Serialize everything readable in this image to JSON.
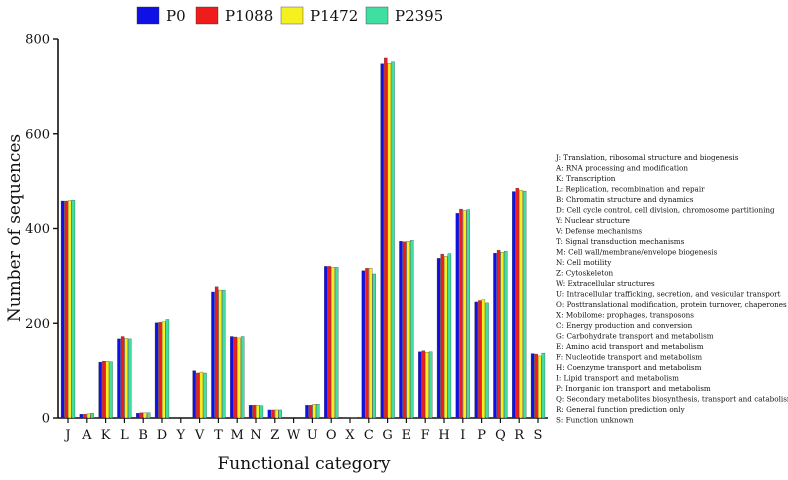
{
  "chart_data": {
    "type": "bar",
    "xlabel": "Functional category",
    "ylabel": "Number of sequences",
    "ylim": [
      0,
      800
    ],
    "yticks": [
      0,
      200,
      400,
      600,
      800
    ],
    "legend_position": "top",
    "grid": false,
    "categories": [
      "J",
      "A",
      "K",
      "L",
      "B",
      "D",
      "Y",
      "V",
      "T",
      "M",
      "N",
      "Z",
      "W",
      "U",
      "O",
      "X",
      "C",
      "G",
      "E",
      "F",
      "H",
      "I",
      "P",
      "Q",
      "R",
      "S"
    ],
    "series": [
      {
        "name": "P0",
        "color": "#1010e6",
        "values": [
          458,
          8,
          118,
          167,
          10,
          201,
          0,
          100,
          266,
          172,
          27,
          17,
          0,
          27,
          320,
          1,
          311,
          748,
          373,
          140,
          337,
          432,
          245,
          348,
          478,
          136
        ]
      },
      {
        "name": "P1088",
        "color": "#ee1c1c",
        "values": [
          458,
          8,
          120,
          172,
          11,
          202,
          0,
          95,
          277,
          171,
          27,
          17,
          0,
          27,
          320,
          1,
          316,
          760,
          372,
          142,
          346,
          441,
          248,
          354,
          485,
          135
        ]
      },
      {
        "name": "P1472",
        "color": "#f5f01e",
        "values": [
          459,
          9,
          120,
          168,
          11,
          203,
          0,
          97,
          270,
          169,
          27,
          17,
          0,
          29,
          318,
          1,
          316,
          749,
          373,
          139,
          341,
          438,
          250,
          350,
          481,
          131
        ]
      },
      {
        "name": "P2395",
        "color": "#3fdfa2",
        "values": [
          460,
          10,
          119,
          167,
          11,
          208,
          0,
          95,
          270,
          172,
          26,
          17,
          0,
          29,
          318,
          1,
          304,
          752,
          375,
          140,
          347,
          440,
          243,
          352,
          479,
          137
        ]
      }
    ],
    "descriptions": [
      "J: Translation, ribosomal structure and biogenesis",
      "A: RNA processing and modification",
      "K: Transcription",
      "L: Replication, recombination and repair",
      "B: Chromatin structure and dynamics",
      "D: Cell cycle control, cell division, chromosome partitioning",
      "Y: Nuclear structure",
      "V: Defense mechanisms",
      "T: Signal transduction mechanisms",
      "M: Cell wall/membrane/envelope biogenesis",
      "N: Cell motility",
      "Z: Cytoskeleton",
      "W: Extracellular structures",
      "U: Intracellular trafficking, secretion, and vesicular transport",
      "O: Posttranslational modification, protein turnover, chaperones",
      "X: Mobilome: prophages, transposons",
      "C: Energy production and conversion",
      "G: Carbohydrate transport and metabolism",
      "E: Amino acid transport and metabolism",
      "F: Nucleotide transport and metabolism",
      "H: Coenzyme transport and metabolism",
      "I: Lipid transport and metabolism",
      "P: Inorganic ion transport and metabolism",
      "Q: Secondary metabolites biosynthesis, transport and catabolism",
      "R: General function prediction only",
      "S: Function unknown"
    ]
  }
}
